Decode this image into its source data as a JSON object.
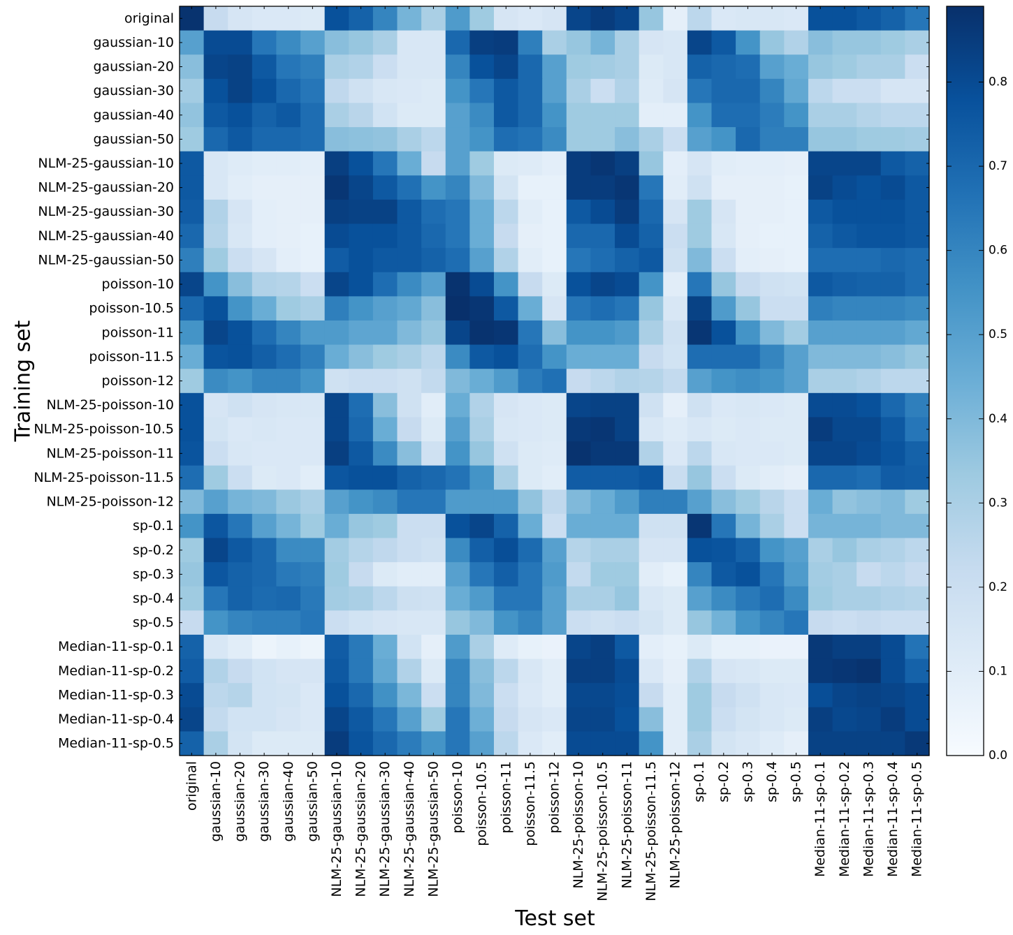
{
  "chart_data": {
    "type": "heatmap",
    "xlabel": "Test set",
    "ylabel": "Training set",
    "labels": [
      "original",
      "gaussian-10",
      "gaussian-20",
      "gaussian-30",
      "gaussian-40",
      "gaussian-50",
      "NLM-25-gaussian-10",
      "NLM-25-gaussian-20",
      "NLM-25-gaussian-30",
      "NLM-25-gaussian-40",
      "NLM-25-gaussian-50",
      "poisson-10",
      "poisson-10.5",
      "poisson-11",
      "poisson-11.5",
      "poisson-12",
      "NLM-25-poisson-10",
      "NLM-25-poisson-10.5",
      "NLM-25-poisson-11",
      "NLM-25-poisson-11.5",
      "NLM-25-poisson-12",
      "sp-0.1",
      "sp-0.2",
      "sp-0.3",
      "sp-0.4",
      "sp-0.5",
      "Median-11-sp-0.1",
      "Median-11-sp-0.2",
      "Median-11-sp-0.3",
      "Median-11-sp-0.4",
      "Median-11-sp-0.5"
    ],
    "colorbar": {
      "vmin": 0.0,
      "vmax": 0.89,
      "ticks": [
        0.0,
        0.1,
        0.2,
        0.3,
        0.4,
        0.5,
        0.6,
        0.7,
        0.8
      ],
      "tick_labels": [
        "0.0",
        "0.1",
        "0.2",
        "0.3",
        "0.4",
        "0.5",
        "0.6",
        "0.7",
        "0.8"
      ],
      "colormap": "Blues",
      "stops": [
        "#f7fbff",
        "#deebf7",
        "#c6dbef",
        "#9ecae1",
        "#6baed6",
        "#4292c6",
        "#2171b5",
        "#08519c",
        "#08306b"
      ]
    },
    "values": [
      [
        0.88,
        0.22,
        0.15,
        0.13,
        0.13,
        0.12,
        0.78,
        0.72,
        0.6,
        0.42,
        0.3,
        0.52,
        0.33,
        0.15,
        0.13,
        0.15,
        0.82,
        0.85,
        0.82,
        0.35,
        0.08,
        0.25,
        0.13,
        0.14,
        0.14,
        0.13,
        0.78,
        0.78,
        0.75,
        0.72,
        0.65
      ],
      [
        0.5,
        0.8,
        0.8,
        0.65,
        0.58,
        0.5,
        0.38,
        0.35,
        0.3,
        0.14,
        0.14,
        0.7,
        0.84,
        0.85,
        0.62,
        0.3,
        0.35,
        0.42,
        0.3,
        0.15,
        0.14,
        0.82,
        0.75,
        0.55,
        0.35,
        0.28,
        0.38,
        0.35,
        0.35,
        0.33,
        0.3
      ],
      [
        0.38,
        0.82,
        0.83,
        0.75,
        0.65,
        0.62,
        0.3,
        0.28,
        0.2,
        0.14,
        0.14,
        0.6,
        0.78,
        0.82,
        0.7,
        0.5,
        0.33,
        0.32,
        0.3,
        0.12,
        0.14,
        0.72,
        0.7,
        0.68,
        0.5,
        0.45,
        0.35,
        0.33,
        0.3,
        0.3,
        0.2
      ],
      [
        0.32,
        0.78,
        0.83,
        0.78,
        0.7,
        0.65,
        0.24,
        0.18,
        0.14,
        0.13,
        0.12,
        0.55,
        0.65,
        0.75,
        0.7,
        0.5,
        0.3,
        0.2,
        0.28,
        0.11,
        0.15,
        0.65,
        0.7,
        0.7,
        0.6,
        0.47,
        0.25,
        0.2,
        0.2,
        0.15,
        0.15
      ],
      [
        0.36,
        0.75,
        0.78,
        0.72,
        0.75,
        0.68,
        0.3,
        0.26,
        0.17,
        0.12,
        0.12,
        0.5,
        0.58,
        0.75,
        0.7,
        0.55,
        0.33,
        0.33,
        0.33,
        0.09,
        0.09,
        0.55,
        0.68,
        0.68,
        0.63,
        0.55,
        0.3,
        0.3,
        0.27,
        0.25,
        0.25
      ],
      [
        0.33,
        0.7,
        0.75,
        0.7,
        0.7,
        0.68,
        0.38,
        0.37,
        0.36,
        0.3,
        0.25,
        0.5,
        0.55,
        0.68,
        0.66,
        0.58,
        0.33,
        0.33,
        0.38,
        0.3,
        0.2,
        0.5,
        0.55,
        0.7,
        0.62,
        0.62,
        0.35,
        0.35,
        0.33,
        0.33,
        0.32
      ],
      [
        0.75,
        0.14,
        0.11,
        0.1,
        0.1,
        0.09,
        0.84,
        0.78,
        0.65,
        0.45,
        0.22,
        0.5,
        0.33,
        0.12,
        0.11,
        0.09,
        0.85,
        0.87,
        0.84,
        0.35,
        0.09,
        0.15,
        0.1,
        0.09,
        0.09,
        0.08,
        0.82,
        0.82,
        0.82,
        0.75,
        0.72
      ],
      [
        0.75,
        0.14,
        0.1,
        0.08,
        0.08,
        0.08,
        0.87,
        0.82,
        0.75,
        0.67,
        0.55,
        0.6,
        0.4,
        0.16,
        0.07,
        0.07,
        0.85,
        0.85,
        0.87,
        0.65,
        0.1,
        0.18,
        0.08,
        0.08,
        0.08,
        0.07,
        0.83,
        0.8,
        0.78,
        0.8,
        0.75
      ],
      [
        0.74,
        0.28,
        0.15,
        0.09,
        0.08,
        0.08,
        0.84,
        0.83,
        0.83,
        0.75,
        0.68,
        0.65,
        0.45,
        0.25,
        0.1,
        0.07,
        0.75,
        0.8,
        0.85,
        0.7,
        0.15,
        0.33,
        0.15,
        0.08,
        0.08,
        0.07,
        0.75,
        0.78,
        0.78,
        0.78,
        0.75
      ],
      [
        0.7,
        0.27,
        0.14,
        0.09,
        0.08,
        0.07,
        0.8,
        0.78,
        0.78,
        0.75,
        0.7,
        0.65,
        0.45,
        0.22,
        0.08,
        0.07,
        0.7,
        0.7,
        0.8,
        0.72,
        0.2,
        0.33,
        0.14,
        0.08,
        0.07,
        0.07,
        0.72,
        0.75,
        0.77,
        0.77,
        0.75
      ],
      [
        0.62,
        0.33,
        0.2,
        0.15,
        0.09,
        0.07,
        0.74,
        0.78,
        0.75,
        0.75,
        0.72,
        0.68,
        0.5,
        0.28,
        0.1,
        0.07,
        0.65,
        0.68,
        0.72,
        0.75,
        0.18,
        0.4,
        0.2,
        0.09,
        0.08,
        0.07,
        0.68,
        0.68,
        0.68,
        0.7,
        0.68
      ],
      [
        0.82,
        0.55,
        0.38,
        0.28,
        0.27,
        0.2,
        0.82,
        0.78,
        0.68,
        0.58,
        0.5,
        0.88,
        0.8,
        0.55,
        0.22,
        0.12,
        0.78,
        0.82,
        0.8,
        0.55,
        0.1,
        0.65,
        0.35,
        0.22,
        0.18,
        0.17,
        0.75,
        0.73,
        0.72,
        0.72,
        0.68
      ],
      [
        0.7,
        0.78,
        0.55,
        0.45,
        0.33,
        0.3,
        0.62,
        0.55,
        0.5,
        0.47,
        0.38,
        0.89,
        0.87,
        0.75,
        0.45,
        0.15,
        0.65,
        0.68,
        0.65,
        0.35,
        0.14,
        0.83,
        0.52,
        0.35,
        0.2,
        0.2,
        0.62,
        0.6,
        0.6,
        0.6,
        0.58
      ],
      [
        0.55,
        0.82,
        0.78,
        0.68,
        0.6,
        0.52,
        0.52,
        0.48,
        0.48,
        0.4,
        0.35,
        0.82,
        0.88,
        0.87,
        0.65,
        0.38,
        0.55,
        0.55,
        0.52,
        0.3,
        0.18,
        0.87,
        0.78,
        0.55,
        0.4,
        0.32,
        0.5,
        0.5,
        0.5,
        0.5,
        0.47
      ],
      [
        0.45,
        0.77,
        0.78,
        0.73,
        0.68,
        0.62,
        0.45,
        0.38,
        0.33,
        0.3,
        0.25,
        0.58,
        0.75,
        0.78,
        0.68,
        0.55,
        0.45,
        0.45,
        0.45,
        0.22,
        0.17,
        0.68,
        0.68,
        0.68,
        0.6,
        0.5,
        0.4,
        0.4,
        0.4,
        0.38,
        0.35
      ],
      [
        0.33,
        0.58,
        0.55,
        0.6,
        0.6,
        0.55,
        0.18,
        0.2,
        0.2,
        0.18,
        0.23,
        0.4,
        0.45,
        0.52,
        0.63,
        0.67,
        0.22,
        0.25,
        0.28,
        0.27,
        0.23,
        0.5,
        0.55,
        0.57,
        0.55,
        0.5,
        0.3,
        0.3,
        0.28,
        0.25,
        0.25
      ],
      [
        0.78,
        0.15,
        0.18,
        0.15,
        0.14,
        0.14,
        0.82,
        0.68,
        0.38,
        0.18,
        0.1,
        0.45,
        0.28,
        0.15,
        0.13,
        0.12,
        0.82,
        0.83,
        0.83,
        0.18,
        0.08,
        0.18,
        0.13,
        0.14,
        0.13,
        0.12,
        0.8,
        0.8,
        0.78,
        0.7,
        0.62
      ],
      [
        0.78,
        0.16,
        0.13,
        0.14,
        0.13,
        0.13,
        0.82,
        0.7,
        0.45,
        0.22,
        0.12,
        0.5,
        0.3,
        0.14,
        0.13,
        0.12,
        0.86,
        0.87,
        0.83,
        0.14,
        0.11,
        0.14,
        0.12,
        0.13,
        0.12,
        0.12,
        0.85,
        0.81,
        0.81,
        0.75,
        0.65
      ],
      [
        0.77,
        0.2,
        0.14,
        0.13,
        0.13,
        0.13,
        0.84,
        0.75,
        0.58,
        0.38,
        0.18,
        0.55,
        0.35,
        0.18,
        0.12,
        0.11,
        0.88,
        0.86,
        0.86,
        0.28,
        0.13,
        0.25,
        0.14,
        0.13,
        0.13,
        0.12,
        0.82,
        0.82,
        0.8,
        0.77,
        0.72
      ],
      [
        0.68,
        0.33,
        0.2,
        0.12,
        0.13,
        0.1,
        0.76,
        0.78,
        0.78,
        0.72,
        0.7,
        0.66,
        0.55,
        0.3,
        0.12,
        0.1,
        0.74,
        0.74,
        0.74,
        0.76,
        0.21,
        0.35,
        0.2,
        0.12,
        0.1,
        0.08,
        0.7,
        0.7,
        0.68,
        0.74,
        0.73
      ],
      [
        0.4,
        0.5,
        0.42,
        0.4,
        0.34,
        0.3,
        0.5,
        0.55,
        0.58,
        0.65,
        0.65,
        0.52,
        0.52,
        0.52,
        0.36,
        0.24,
        0.4,
        0.45,
        0.52,
        0.62,
        0.62,
        0.5,
        0.38,
        0.33,
        0.26,
        0.2,
        0.45,
        0.36,
        0.38,
        0.4,
        0.33
      ],
      [
        0.55,
        0.76,
        0.65,
        0.5,
        0.42,
        0.33,
        0.45,
        0.35,
        0.33,
        0.2,
        0.2,
        0.78,
        0.82,
        0.72,
        0.45,
        0.2,
        0.45,
        0.45,
        0.45,
        0.18,
        0.18,
        0.87,
        0.65,
        0.42,
        0.3,
        0.2,
        0.42,
        0.42,
        0.42,
        0.4,
        0.4
      ],
      [
        0.33,
        0.82,
        0.75,
        0.7,
        0.58,
        0.58,
        0.32,
        0.27,
        0.24,
        0.2,
        0.18,
        0.58,
        0.73,
        0.79,
        0.69,
        0.5,
        0.27,
        0.3,
        0.3,
        0.15,
        0.15,
        0.78,
        0.77,
        0.72,
        0.55,
        0.5,
        0.3,
        0.35,
        0.3,
        0.28,
        0.25
      ],
      [
        0.35,
        0.76,
        0.72,
        0.7,
        0.64,
        0.62,
        0.33,
        0.22,
        0.12,
        0.1,
        0.1,
        0.5,
        0.65,
        0.73,
        0.65,
        0.52,
        0.23,
        0.33,
        0.33,
        0.1,
        0.07,
        0.6,
        0.75,
        0.78,
        0.65,
        0.52,
        0.32,
        0.3,
        0.22,
        0.25,
        0.22
      ],
      [
        0.33,
        0.65,
        0.72,
        0.69,
        0.7,
        0.64,
        0.32,
        0.3,
        0.25,
        0.19,
        0.18,
        0.45,
        0.52,
        0.65,
        0.65,
        0.5,
        0.3,
        0.3,
        0.35,
        0.14,
        0.12,
        0.5,
        0.58,
        0.64,
        0.68,
        0.58,
        0.33,
        0.3,
        0.3,
        0.28,
        0.27
      ],
      [
        0.22,
        0.55,
        0.6,
        0.62,
        0.62,
        0.65,
        0.2,
        0.17,
        0.15,
        0.14,
        0.14,
        0.35,
        0.4,
        0.55,
        0.6,
        0.5,
        0.2,
        0.18,
        0.2,
        0.16,
        0.12,
        0.35,
        0.43,
        0.55,
        0.6,
        0.65,
        0.22,
        0.2,
        0.22,
        0.2,
        0.2
      ],
      [
        0.72,
        0.14,
        0.1,
        0.05,
        0.07,
        0.05,
        0.74,
        0.64,
        0.45,
        0.17,
        0.08,
        0.52,
        0.3,
        0.11,
        0.07,
        0.06,
        0.82,
        0.84,
        0.75,
        0.09,
        0.07,
        0.12,
        0.07,
        0.07,
        0.06,
        0.06,
        0.86,
        0.84,
        0.84,
        0.8,
        0.66
      ],
      [
        0.74,
        0.28,
        0.22,
        0.17,
        0.15,
        0.15,
        0.75,
        0.64,
        0.47,
        0.28,
        0.12,
        0.6,
        0.38,
        0.25,
        0.14,
        0.1,
        0.84,
        0.84,
        0.8,
        0.13,
        0.08,
        0.28,
        0.15,
        0.14,
        0.12,
        0.12,
        0.86,
        0.87,
        0.88,
        0.8,
        0.72
      ],
      [
        0.8,
        0.25,
        0.27,
        0.17,
        0.16,
        0.13,
        0.78,
        0.7,
        0.56,
        0.41,
        0.2,
        0.6,
        0.4,
        0.2,
        0.13,
        0.1,
        0.81,
        0.81,
        0.79,
        0.22,
        0.1,
        0.33,
        0.22,
        0.18,
        0.14,
        0.13,
        0.79,
        0.82,
        0.83,
        0.82,
        0.8
      ],
      [
        0.82,
        0.23,
        0.17,
        0.17,
        0.15,
        0.13,
        0.82,
        0.75,
        0.65,
        0.5,
        0.33,
        0.65,
        0.44,
        0.22,
        0.15,
        0.13,
        0.82,
        0.82,
        0.78,
        0.38,
        0.1,
        0.33,
        0.2,
        0.16,
        0.14,
        0.12,
        0.84,
        0.81,
        0.82,
        0.85,
        0.8
      ],
      [
        0.72,
        0.3,
        0.16,
        0.12,
        0.12,
        0.12,
        0.85,
        0.77,
        0.7,
        0.63,
        0.55,
        0.65,
        0.5,
        0.25,
        0.13,
        0.1,
        0.8,
        0.8,
        0.8,
        0.55,
        0.1,
        0.3,
        0.16,
        0.14,
        0.11,
        0.08,
        0.83,
        0.83,
        0.83,
        0.83,
        0.86
      ]
    ]
  }
}
